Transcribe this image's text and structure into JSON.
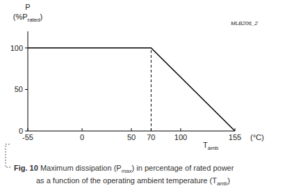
{
  "chart_data": {
    "type": "line",
    "annotation": "MLB206_2",
    "ylabel": [
      {
        "text": "P"
      }
    ],
    "ylabel_unit": [
      {
        "text": "(%P"
      },
      {
        "text": "rated",
        "sub": true
      },
      {
        "text": ")"
      }
    ],
    "xlabel": [
      {
        "text": "T"
      },
      {
        "text": "amb",
        "sub": true
      }
    ],
    "xlabel_unit": "(°C)",
    "caption": [
      [
        {
          "text": "Fig. 10",
          "bold": true
        },
        {
          "text": " Maximum dissipation (P"
        },
        {
          "text": "max",
          "sub": true
        },
        {
          "text": ") in percentage of rated power"
        }
      ],
      [
        {
          "text": "as a function of the operating ambient temperature (T"
        },
        {
          "text": "amb",
          "sub": true
        },
        {
          "text": ")"
        }
      ]
    ],
    "x": [
      -55,
      70,
      155
    ],
    "values": [
      100,
      100,
      0
    ],
    "color": "#000000",
    "xlim": [
      -55,
      155
    ],
    "ylim": [
      0,
      120
    ],
    "xticks": [
      -55,
      0,
      50,
      70,
      100,
      155
    ],
    "yticks": [
      0,
      50,
      100
    ],
    "grid": false
  }
}
